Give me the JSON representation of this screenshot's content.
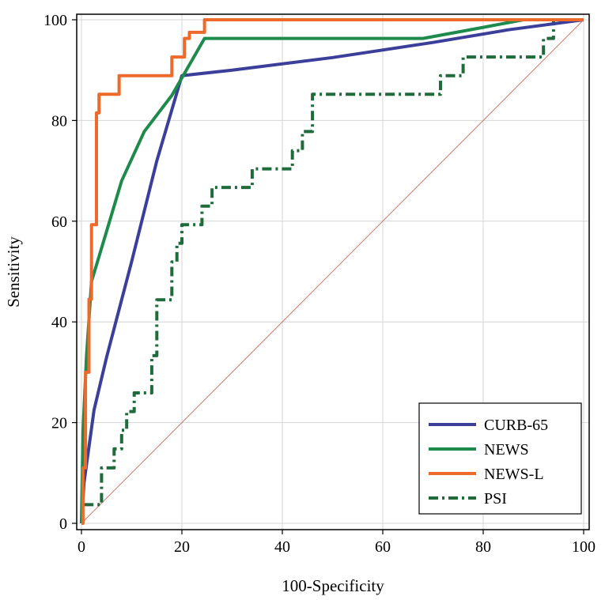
{
  "chart_data": {
    "type": "line",
    "title": "",
    "xlabel": "100-Specificity",
    "ylabel": "Sensitivity",
    "xlim": [
      0,
      100
    ],
    "ylim": [
      0,
      100
    ],
    "x_ticks": [
      0,
      20,
      40,
      60,
      80,
      100
    ],
    "y_ticks": [
      0,
      20,
      40,
      60,
      80,
      100
    ],
    "x_tick_labels": [
      "0",
      "20",
      "40",
      "60",
      "80",
      "100"
    ],
    "y_tick_labels": [
      "0",
      "20",
      "40",
      "60",
      "80",
      "100"
    ],
    "grid": true,
    "legend_position": "bottom-right",
    "reference_line": {
      "name": "diagonal",
      "x": [
        0,
        100
      ],
      "y": [
        0,
        100
      ],
      "color": "#c97a6a"
    },
    "series": [
      {
        "name": "CURB-65",
        "color": "#3b3f9a",
        "style": "solid",
        "x": [
          0,
          0.5,
          2.5,
          5,
          10,
          15,
          20,
          30,
          50,
          70,
          85,
          100
        ],
        "y": [
          0,
          8,
          22.5,
          33,
          52,
          72,
          88.9,
          90,
          92.5,
          95.5,
          98,
          100
        ]
      },
      {
        "name": "NEWS",
        "color": "#1e8a4c",
        "style": "solid",
        "x": [
          0,
          0.3,
          1,
          2,
          5,
          8,
          12.5,
          18,
          24.5,
          68,
          80,
          88,
          100
        ],
        "y": [
          0,
          18,
          33,
          48,
          58,
          68,
          77.8,
          85,
          96.3,
          96.3,
          98.5,
          100,
          100
        ]
      },
      {
        "name": "NEWS-L",
        "color": "#ee6a2a",
        "style": "solid",
        "x": [
          0,
          0.3,
          0.3,
          0.8,
          0.8,
          1.5,
          1.5,
          2,
          2,
          3,
          3,
          3.5,
          3.5,
          7.5,
          7.5,
          18,
          18,
          20.5,
          20.5,
          21.5,
          21.5,
          24.5,
          24.5,
          100
        ],
        "y": [
          0,
          0,
          11,
          11,
          30,
          30,
          44.5,
          44.5,
          59.3,
          59.3,
          81.5,
          81.5,
          85.2,
          85.2,
          88.9,
          88.9,
          92.6,
          92.6,
          96.3,
          96.3,
          97.5,
          97.5,
          100,
          100
        ]
      },
      {
        "name": "PSI",
        "color": "#1f6b3c",
        "style": "dash-dot",
        "x": [
          0,
          0.3,
          0.3,
          4,
          4,
          6.5,
          6.5,
          8,
          8,
          9,
          9,
          10.5,
          10.5,
          11.5,
          11.5,
          14,
          14,
          15,
          15,
          18,
          18,
          19,
          19,
          20,
          20,
          24,
          24,
          26,
          26,
          34,
          34,
          37,
          37,
          42,
          42,
          44,
          44,
          46,
          46,
          71.5,
          71.5,
          73,
          73,
          76,
          76,
          92,
          92,
          94,
          94,
          100
        ],
        "y": [
          0,
          3.7,
          3.7,
          3.7,
          11,
          11,
          14.8,
          14.8,
          18.5,
          18.5,
          22.2,
          22.2,
          25.9,
          25.9,
          25.9,
          25.9,
          33.3,
          33.3,
          44.4,
          44.4,
          51.9,
          51.9,
          55.6,
          55.6,
          59.3,
          59.3,
          63,
          63,
          66.7,
          66.7,
          70.4,
          70.4,
          70.4,
          70.4,
          74,
          74,
          77.8,
          77.8,
          85.2,
          85.2,
          88.9,
          88.9,
          88.9,
          88.9,
          92.6,
          92.6,
          96.3,
          96.3,
          100,
          100
        ]
      }
    ]
  }
}
